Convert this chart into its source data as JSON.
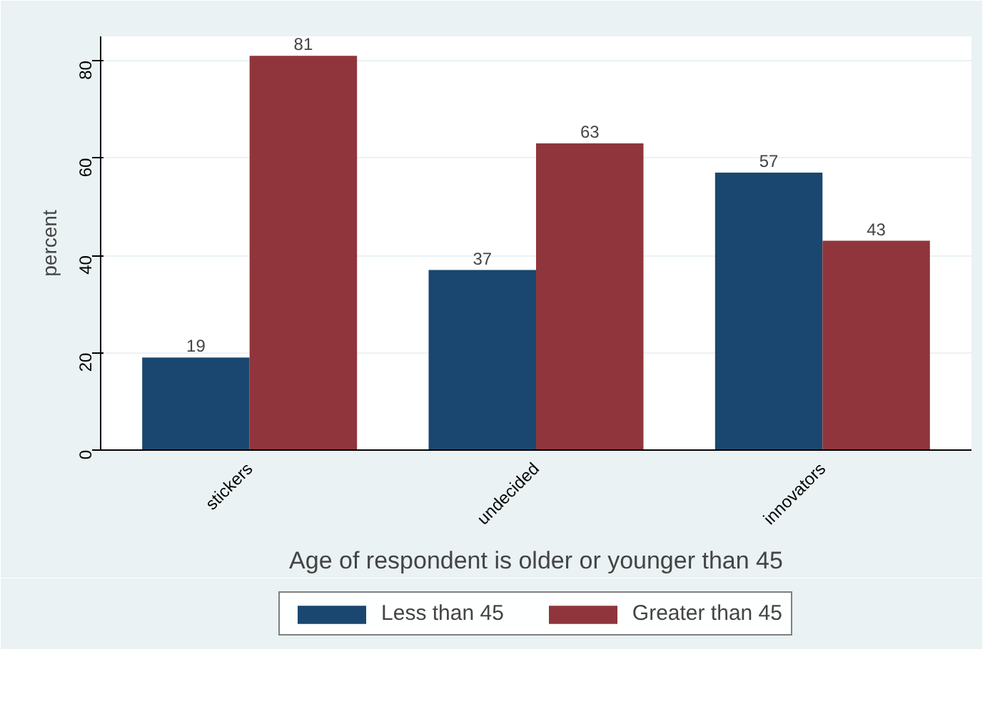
{
  "chart_data": {
    "type": "bar",
    "categories": [
      "stickers",
      "undecided",
      "innovators"
    ],
    "series": [
      {
        "name": "Less than 45",
        "color": "#1a476f",
        "values": [
          19,
          37,
          57
        ]
      },
      {
        "name": "Greater than 45",
        "color": "#90353b",
        "values": [
          81,
          63,
          43
        ]
      }
    ],
    "xlabel": "Age of respondent is older or younger than 45",
    "ylabel": "percent",
    "ylim": [
      0,
      85
    ],
    "yticks": [
      0,
      20,
      40,
      60,
      80
    ],
    "grid": "y",
    "legend": "bottom",
    "data_labels": true
  }
}
